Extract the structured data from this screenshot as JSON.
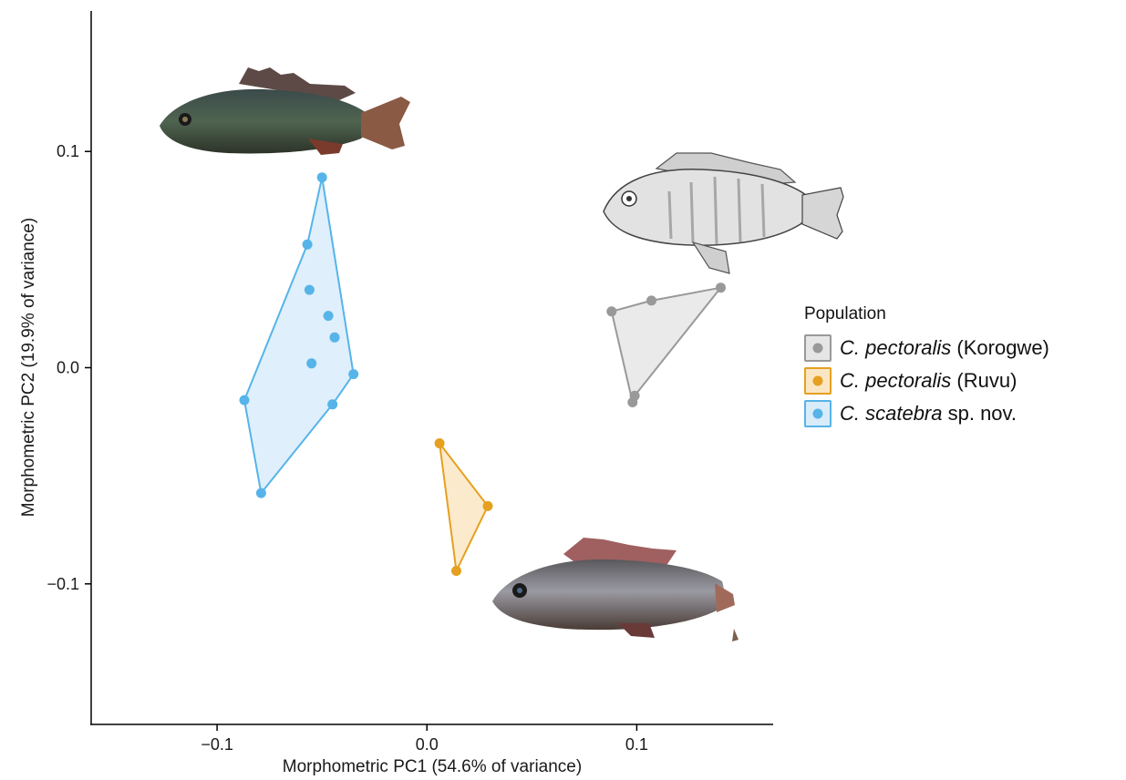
{
  "chart_data": {
    "type": "scatter",
    "xlabel": "Morphometric PC1 (54.6% of variance)",
    "ylabel": "Morphometric PC2 (19.9% of variance)",
    "xlim": [
      -0.16,
      0.165
    ],
    "ylim": [
      -0.165,
      0.165
    ],
    "x_ticks": [
      -0.1,
      0.0,
      0.1
    ],
    "x_tick_labels": [
      "−0.1",
      "0.0",
      "0.1"
    ],
    "y_ticks": [
      -0.1,
      0.0,
      0.1
    ],
    "y_tick_labels": [
      "−0.1",
      "0.0",
      "0.1"
    ],
    "grid": false,
    "legend_position": "right",
    "legend": {
      "title": "Population",
      "entries": [
        {
          "species": "C. pectoralis",
          "suffix": " (Korogwe)"
        },
        {
          "species": "C. pectoralis",
          "suffix": " (Ruvu)"
        },
        {
          "species": "C. scatebra",
          "suffix": " sp. nov."
        }
      ]
    },
    "series": [
      {
        "name": "C. pectoralis (Korogwe)",
        "color": "#999999",
        "fill": "#e6e6e6",
        "points": [
          [
            0.088,
            0.026
          ],
          [
            0.107,
            0.031
          ],
          [
            0.14,
            0.037
          ],
          [
            0.099,
            -0.013
          ],
          [
            0.098,
            -0.016
          ]
        ],
        "hull": [
          [
            0.088,
            0.026
          ],
          [
            0.107,
            0.031
          ],
          [
            0.14,
            0.037
          ],
          [
            0.099,
            -0.013
          ],
          [
            0.098,
            -0.016
          ]
        ]
      },
      {
        "name": "C. pectoralis (Ruvu)",
        "color": "#e5a020",
        "fill": "#fbe6c4",
        "points": [
          [
            0.006,
            -0.035
          ],
          [
            0.029,
            -0.064
          ],
          [
            0.014,
            -0.094
          ]
        ],
        "hull": [
          [
            0.006,
            -0.035
          ],
          [
            0.029,
            -0.064
          ],
          [
            0.014,
            -0.094
          ]
        ]
      },
      {
        "name": "C. scatebra sp. nov.",
        "color": "#56b4e9",
        "fill": "#d9ecfa",
        "points": [
          [
            -0.05,
            0.088
          ],
          [
            -0.057,
            0.057
          ],
          [
            -0.056,
            0.036
          ],
          [
            -0.047,
            0.024
          ],
          [
            -0.044,
            0.014
          ],
          [
            -0.055,
            0.002
          ],
          [
            -0.035,
            -0.003
          ],
          [
            -0.045,
            -0.017
          ],
          [
            -0.087,
            -0.015
          ],
          [
            -0.079,
            -0.058
          ]
        ],
        "hull": [
          [
            -0.05,
            0.088
          ],
          [
            -0.035,
            -0.003
          ],
          [
            -0.045,
            -0.017
          ],
          [
            -0.079,
            -0.058
          ],
          [
            -0.087,
            -0.015
          ],
          [
            -0.057,
            0.057
          ]
        ]
      }
    ]
  }
}
